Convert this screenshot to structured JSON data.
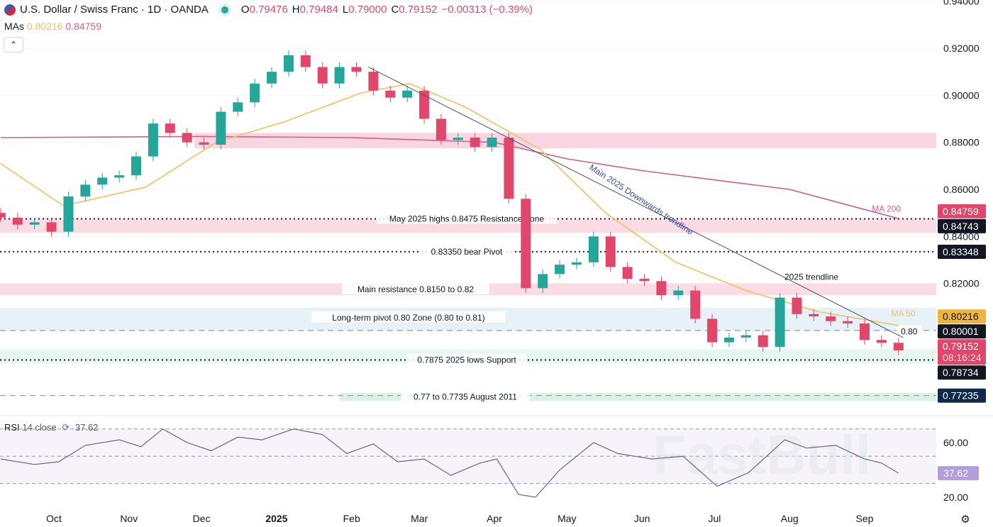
{
  "header": {
    "symbol_title": "U.S. Dollar / Swiss Franc · 1D · OANDA",
    "open_label": "O",
    "open": "0.79476",
    "high_label": "H",
    "high": "0.79484",
    "low_label": "L",
    "low": "0.79000",
    "close_label": "C",
    "close": "0.79152",
    "change": "−0.00313 (−0.39%)",
    "mas_label": "MAs",
    "ma50_value": "0.80216",
    "ma200_value": "0.84759",
    "collapse_icon": "chevron-up-icon"
  },
  "rsi_header": {
    "label": "RSI",
    "params": "14 close",
    "value": "37.62",
    "icon": "refresh-icon"
  },
  "colors": {
    "up": "#26a69a",
    "down": "#e0476b",
    "ma50": "#f0c060",
    "ma200": "#d2608a",
    "trendline": "#4a5060",
    "rsi": "#6a6580"
  },
  "watermark": "FastBull",
  "chart_data": {
    "type": "candlestick",
    "price_axis": {
      "ticks": [
        "0.94000",
        "0.92000",
        "0.90000",
        "0.88000",
        "0.86000",
        "0.84000",
        "0.82000"
      ],
      "range": [
        0.764,
        0.941
      ]
    },
    "time_axis": {
      "ticks": [
        {
          "label": "Oct",
          "date": "2024-10-01"
        },
        {
          "label": "Nov",
          "date": "2024-11-01"
        },
        {
          "label": "Dec",
          "date": "2024-12-01"
        },
        {
          "label": "2025",
          "date": "2025-01-01",
          "bold": true
        },
        {
          "label": "Feb",
          "date": "2025-02-01"
        },
        {
          "label": "Mar",
          "date": "2025-03-01"
        },
        {
          "label": "Apr",
          "date": "2025-04-01"
        },
        {
          "label": "May",
          "date": "2025-05-01"
        },
        {
          "label": "Jun",
          "date": "2025-06-01"
        },
        {
          "label": "Jul",
          "date": "2025-07-01"
        },
        {
          "label": "Aug",
          "date": "2025-08-01"
        },
        {
          "label": "Sep",
          "date": "2025-09-01"
        }
      ]
    },
    "closes": [
      [
        "2024-09-09",
        0.848
      ],
      [
        "2024-09-16",
        0.845
      ],
      [
        "2024-09-23",
        0.846
      ],
      [
        "2024-09-30",
        0.842
      ],
      [
        "2024-10-07",
        0.857
      ],
      [
        "2024-10-14",
        0.862
      ],
      [
        "2024-10-21",
        0.865
      ],
      [
        "2024-10-28",
        0.866
      ],
      [
        "2024-11-04",
        0.874
      ],
      [
        "2024-11-11",
        0.888
      ],
      [
        "2024-11-18",
        0.884
      ],
      [
        "2024-11-25",
        0.88
      ],
      [
        "2024-12-02",
        0.879
      ],
      [
        "2024-12-09",
        0.893
      ],
      [
        "2024-12-16",
        0.897
      ],
      [
        "2024-12-23",
        0.905
      ],
      [
        "2024-12-30",
        0.91
      ],
      [
        "2025-01-06",
        0.917
      ],
      [
        "2025-01-13",
        0.912
      ],
      [
        "2025-01-20",
        0.905
      ],
      [
        "2025-01-27",
        0.912
      ],
      [
        "2025-02-03",
        0.91
      ],
      [
        "2025-02-10",
        0.902
      ],
      [
        "2025-02-17",
        0.899
      ],
      [
        "2025-02-24",
        0.902
      ],
      [
        "2025-03-03",
        0.89
      ],
      [
        "2025-03-10",
        0.881
      ],
      [
        "2025-03-17",
        0.882
      ],
      [
        "2025-03-24",
        0.878
      ],
      [
        "2025-03-31",
        0.882
      ],
      [
        "2025-04-07",
        0.856
      ],
      [
        "2025-04-14",
        0.818
      ],
      [
        "2025-04-21",
        0.824
      ],
      [
        "2025-04-28",
        0.828
      ],
      [
        "2025-05-05",
        0.829
      ],
      [
        "2025-05-12",
        0.84
      ],
      [
        "2025-05-19",
        0.827
      ],
      [
        "2025-05-26",
        0.822
      ],
      [
        "2025-06-02",
        0.821
      ],
      [
        "2025-06-09",
        0.815
      ],
      [
        "2025-06-16",
        0.817
      ],
      [
        "2025-06-23",
        0.805
      ],
      [
        "2025-06-30",
        0.795
      ],
      [
        "2025-07-07",
        0.797
      ],
      [
        "2025-07-14",
        0.798
      ],
      [
        "2025-07-21",
        0.793
      ],
      [
        "2025-07-28",
        0.814
      ],
      [
        "2025-08-04",
        0.807
      ],
      [
        "2025-08-11",
        0.806
      ],
      [
        "2025-08-18",
        0.804
      ],
      [
        "2025-08-25",
        0.803
      ],
      [
        "2025-09-01",
        0.796
      ],
      [
        "2025-09-08",
        0.7948
      ],
      [
        "2025-09-15",
        0.79152
      ]
    ],
    "ma50": [
      [
        "2024-09-09",
        0.871
      ],
      [
        "2024-10-05",
        0.853
      ],
      [
        "2024-11-08",
        0.861
      ],
      [
        "2024-12-07",
        0.88
      ],
      [
        "2025-01-05",
        0.889
      ],
      [
        "2025-02-05",
        0.901
      ],
      [
        "2025-02-25",
        0.905
      ],
      [
        "2025-03-20",
        0.895
      ],
      [
        "2025-04-20",
        0.877
      ],
      [
        "2025-05-17",
        0.85
      ],
      [
        "2025-06-15",
        0.829
      ],
      [
        "2025-07-14",
        0.817
      ],
      [
        "2025-08-13",
        0.808
      ],
      [
        "2025-09-15",
        0.80216
      ]
    ],
    "ma200": [
      [
        "2024-09-09",
        0.882
      ],
      [
        "2024-12-01",
        0.8825
      ],
      [
        "2025-02-01",
        0.882
      ],
      [
        "2025-04-01",
        0.88
      ],
      [
        "2025-05-01",
        0.873
      ],
      [
        "2025-06-01",
        0.868
      ],
      [
        "2025-07-01",
        0.864
      ],
      [
        "2025-08-01",
        0.86
      ],
      [
        "2025-09-15",
        0.84759
      ]
    ],
    "trendline": {
      "from": [
        "2025-02-08",
        0.912
      ],
      "to": [
        "2025-09-17",
        0.797
      ],
      "label": "Main 2025 Downwards trendline"
    },
    "zones": [
      {
        "from": 0.8775,
        "to": 0.884,
        "start": "2024-11-28",
        "color": "#f8d5e0"
      },
      {
        "from": 0.8415,
        "to": 0.8475,
        "color": "#fbdce5",
        "label": "May 2025 highs 0.8475 Resistance Zone"
      },
      {
        "from": 0.815,
        "to": 0.82,
        "color": "#fbdce5",
        "label": "Main resistance 0.8150 to 0.82"
      },
      {
        "from": 0.8,
        "to": 0.8097,
        "color": "#e6f2f8",
        "label": "Long-term pivot 0.80 Zone (0.80 to 0.81)"
      },
      {
        "from": 0.786,
        "to": 0.792,
        "color": "#e8f6f0"
      },
      {
        "from": 0.77,
        "to": 0.7735,
        "start": "2025-01-27",
        "color": "#dcf2e6",
        "label": "0.77 to 0.7735 August 2011"
      }
    ],
    "levels": [
      {
        "price": 0.8475,
        "style": "dotted"
      },
      {
        "price": 0.8335,
        "style": "dotted",
        "label": "0.83350 bear Pivot"
      },
      {
        "price": 0.7875,
        "style": "dotted",
        "label": "0.7875 2025 lows Support"
      },
      {
        "price": 0.8,
        "style": "dashed",
        "label": "0.80"
      },
      {
        "price": 0.77235,
        "style": "dashed"
      }
    ],
    "annotations": [
      {
        "text": "2025 trendline",
        "date": "2025-08-10",
        "price": 0.8215
      },
      {
        "text": "MA 200",
        "date": "2025-09-10",
        "price": 0.8505,
        "color": "#d2608a"
      },
      {
        "text": "MA 50",
        "date": "2025-09-17",
        "price": 0.806,
        "color": "#f0c060"
      }
    ],
    "price_badges": [
      {
        "price": 0.84759,
        "text": "0.84759",
        "bg": "#e0476b"
      },
      {
        "price": 0.84743,
        "text": "0.84743",
        "bg": "#131722"
      },
      {
        "price": 0.83348,
        "text": "0.83348",
        "bg": "#131722"
      },
      {
        "price": 0.80216,
        "text": "0.80216",
        "bg": "#f0b43c",
        "fg": "#131722"
      },
      {
        "price": 0.80001,
        "text": "0.80001",
        "bg": "#131722"
      },
      {
        "price": 0.79152,
        "text": "0.79152",
        "sub": "08:16:24",
        "bg": "#e0476b"
      },
      {
        "price": 0.78734,
        "text": "0.78734",
        "bg": "#131722"
      },
      {
        "price": 0.77235,
        "text": "0.77235",
        "bg": "#0f2a4a"
      }
    ],
    "rsi": {
      "ticks": [
        "60.00",
        "20.00"
      ],
      "levels": [
        70,
        50,
        30
      ],
      "range": [
        15,
        75
      ],
      "value_badge": "37.62",
      "values": [
        [
          "2024-09-09",
          48
        ],
        [
          "2024-09-23",
          44
        ],
        [
          "2024-10-03",
          46
        ],
        [
          "2024-10-14",
          58
        ],
        [
          "2024-10-28",
          62
        ],
        [
          "2024-11-06",
          57
        ],
        [
          "2024-11-15",
          70
        ],
        [
          "2024-11-25",
          60
        ],
        [
          "2024-12-05",
          54
        ],
        [
          "2024-12-16",
          64
        ],
        [
          "2024-12-26",
          62
        ],
        [
          "2025-01-08",
          70
        ],
        [
          "2025-01-20",
          66
        ],
        [
          "2025-01-30",
          52
        ],
        [
          "2025-02-10",
          59
        ],
        [
          "2025-02-20",
          46
        ],
        [
          "2025-03-03",
          48
        ],
        [
          "2025-03-14",
          36
        ],
        [
          "2025-03-26",
          45
        ],
        [
          "2025-04-02",
          48
        ],
        [
          "2025-04-11",
          22
        ],
        [
          "2025-04-18",
          20
        ],
        [
          "2025-04-28",
          40
        ],
        [
          "2025-05-12",
          60
        ],
        [
          "2025-05-22",
          52
        ],
        [
          "2025-06-05",
          48
        ],
        [
          "2025-06-18",
          50
        ],
        [
          "2025-07-02",
          28
        ],
        [
          "2025-07-15",
          38
        ],
        [
          "2025-07-30",
          62
        ],
        [
          "2025-08-08",
          56
        ],
        [
          "2025-08-20",
          58
        ],
        [
          "2025-09-01",
          48
        ],
        [
          "2025-09-08",
          45
        ],
        [
          "2025-09-15",
          37.62
        ]
      ]
    }
  }
}
